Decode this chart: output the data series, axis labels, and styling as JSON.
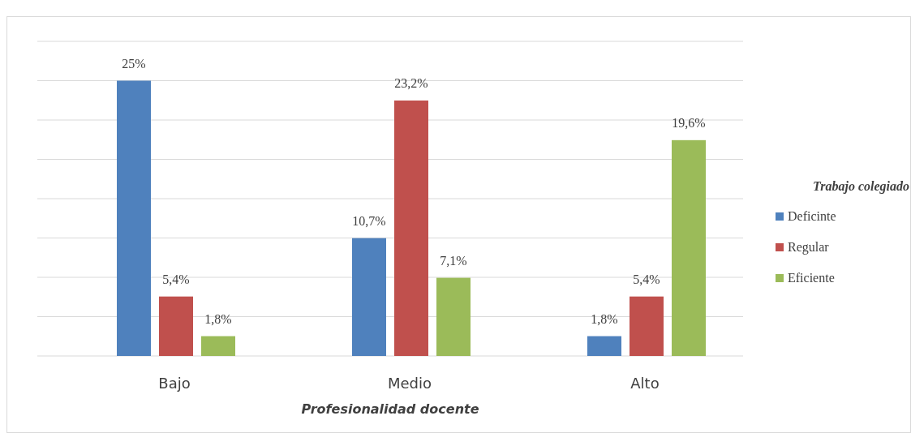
{
  "chart_data": {
    "type": "bar",
    "xlabel": "Profesionalidad docente",
    "legend_title": "Trabajo colegiado",
    "categories": [
      "Bajo",
      "Medio",
      "Alto"
    ],
    "series": [
      {
        "name": "Deficinte",
        "color": "#4f81bd",
        "values": [
          25,
          10.7,
          1.8
        ],
        "value_labels": [
          "25%",
          "10,7%",
          "1,8%"
        ]
      },
      {
        "name": "Regular",
        "color": "#c0504d",
        "values": [
          5.4,
          23.2,
          5.4
        ],
        "value_labels": [
          "5,4%",
          "23,2%",
          "5,4%"
        ]
      },
      {
        "name": "Eficiente",
        "color": "#9bbb59",
        "values": [
          1.8,
          7.1,
          19.6
        ],
        "value_labels": [
          "1,8%",
          "7,1%",
          "19,6%"
        ]
      }
    ],
    "grid": "y",
    "legend": "right",
    "tick_labels": "x"
  }
}
